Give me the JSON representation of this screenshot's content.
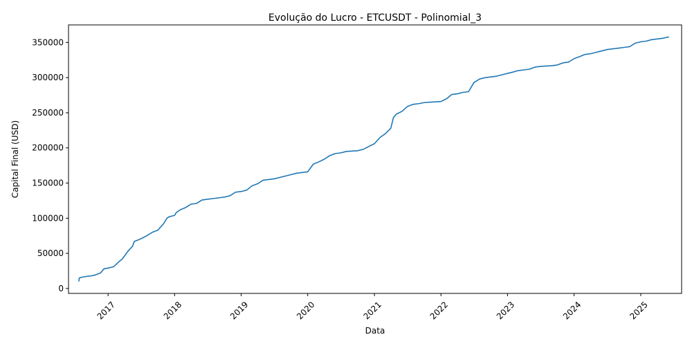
{
  "chart_data": {
    "type": "line",
    "title": "Evolução do Lucro - ETCUSDT - Polinomial_3",
    "xlabel": "Data",
    "ylabel": "Capital Final (USD)",
    "x_type": "date",
    "xlim": [
      "2016-05-29",
      "2025-08-13"
    ],
    "ylim": [
      -7000,
      375000
    ],
    "grid": false,
    "x_ticks": [
      "2017-01-01",
      "2018-01-01",
      "2019-01-01",
      "2020-01-01",
      "2021-01-01",
      "2022-01-01",
      "2023-01-01",
      "2024-01-01",
      "2025-01-01"
    ],
    "x_tick_labels": [
      "2017",
      "2018",
      "2019",
      "2020",
      "2021",
      "2022",
      "2023",
      "2024",
      "2025"
    ],
    "y_ticks": [
      0,
      50000,
      100000,
      150000,
      200000,
      250000,
      300000,
      350000
    ],
    "y_tick_labels": [
      "0",
      "50000",
      "100000",
      "150000",
      "200000",
      "250000",
      "300000",
      "350000"
    ],
    "color": "#1f77b4",
    "series": [
      {
        "x": [
          "2016-07-25",
          "2016-07-27",
          "2016-08-10",
          "2016-09-01",
          "2016-10-01",
          "2016-10-20",
          "2016-11-20",
          "2016-12-10",
          "2017-01-01",
          "2017-02-01",
          "2017-03-01",
          "2017-03-20",
          "2017-04-20",
          "2017-05-15",
          "2017-05-25",
          "2017-06-15",
          "2017-07-10",
          "2017-08-01",
          "2017-09-01",
          "2017-10-01",
          "2017-11-01",
          "2017-11-20",
          "2017-12-01",
          "2018-01-01",
          "2018-01-10",
          "2018-02-01",
          "2018-03-01",
          "2018-04-01",
          "2018-05-01",
          "2018-06-01",
          "2018-07-01",
          "2018-08-01",
          "2018-09-01",
          "2018-10-01",
          "2018-11-01",
          "2018-12-01",
          "2019-01-01",
          "2019-02-01",
          "2019-03-01",
          "2019-04-01",
          "2019-05-01",
          "2019-06-01",
          "2019-07-01",
          "2019-08-01",
          "2019-09-01",
          "2019-10-01",
          "2019-11-01",
          "2019-12-01",
          "2020-01-01",
          "2020-02-01",
          "2020-03-01",
          "2020-04-01",
          "2020-05-01",
          "2020-06-01",
          "2020-07-01",
          "2020-08-01",
          "2020-09-01",
          "2020-10-01",
          "2020-11-01",
          "2020-12-01",
          "2021-01-01",
          "2021-02-01",
          "2021-03-01",
          "2021-04-01",
          "2021-04-15",
          "2021-05-01",
          "2021-06-01",
          "2021-07-01",
          "2021-08-01",
          "2021-09-01",
          "2021-10-01",
          "2021-11-01",
          "2021-12-01",
          "2022-01-01",
          "2022-02-01",
          "2022-03-01",
          "2022-04-01",
          "2022-05-01",
          "2022-06-01",
          "2022-07-01",
          "2022-08-01",
          "2022-09-01",
          "2022-10-01",
          "2022-11-01",
          "2022-12-01",
          "2023-01-01",
          "2023-02-01",
          "2023-03-01",
          "2023-04-01",
          "2023-05-01",
          "2023-06-01",
          "2023-07-01",
          "2023-08-01",
          "2023-09-01",
          "2023-10-01",
          "2023-11-01",
          "2023-12-01",
          "2024-01-01",
          "2024-02-01",
          "2024-03-01",
          "2024-04-01",
          "2024-05-01",
          "2024-06-01",
          "2024-07-01",
          "2024-08-01",
          "2024-09-01",
          "2024-10-01",
          "2024-11-01",
          "2024-12-01",
          "2025-01-01",
          "2025-02-01",
          "2025-03-01",
          "2025-04-01",
          "2025-05-01",
          "2025-06-05"
        ],
        "y": [
          10000,
          15000,
          16000,
          17000,
          18000,
          19000,
          22000,
          28000,
          29000,
          31000,
          38000,
          42000,
          53000,
          60000,
          67000,
          69000,
          72000,
          75000,
          80000,
          83000,
          92000,
          100000,
          102000,
          104000,
          108000,
          112000,
          115000,
          120000,
          121000,
          126000,
          127000,
          128000,
          129000,
          130000,
          132000,
          137000,
          138000,
          140000,
          146000,
          149000,
          154000,
          155000,
          156000,
          158000,
          160000,
          162000,
          164000,
          165000,
          166000,
          177000,
          180000,
          184000,
          189000,
          192000,
          193000,
          195000,
          195500,
          196000,
          198000,
          202000,
          206000,
          215000,
          220000,
          228000,
          243000,
          248000,
          252000,
          259000,
          262000,
          263000,
          264500,
          265000,
          265500,
          266000,
          270000,
          276000,
          277000,
          279000,
          280000,
          293000,
          298000,
          300000,
          301000,
          302000,
          304000,
          306000,
          308000,
          310000,
          311000,
          312000,
          315000,
          316000,
          316500,
          317000,
          318000,
          321000,
          322000,
          327000,
          330000,
          333000,
          334000,
          336000,
          338000,
          340000,
          341000,
          342000,
          343000,
          344000,
          349000,
          351000,
          352000,
          354000,
          355000,
          356000,
          358000
        ]
      }
    ]
  }
}
